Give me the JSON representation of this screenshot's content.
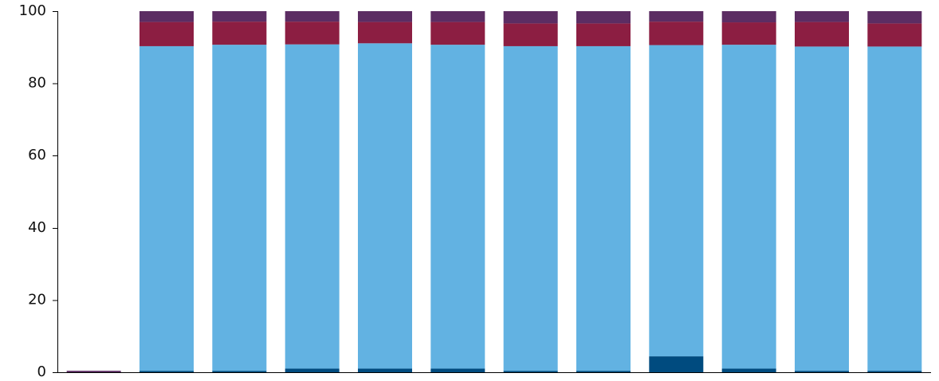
{
  "chart_data": {
    "type": "bar",
    "stacked": true,
    "categories": [
      "",
      "",
      "",
      "",
      "",
      "",
      "",
      "",
      "",
      "",
      "",
      ""
    ],
    "ylim": [
      0,
      100
    ],
    "yticks": [
      "0",
      "20",
      "40",
      "60",
      "80",
      "100"
    ],
    "title": "",
    "xlabel": "",
    "ylabel": "",
    "grid": false,
    "legend": "none",
    "series": [
      {
        "color": "#004B7F",
        "values": [
          0.0,
          0.4,
          0.4,
          1.0,
          1.0,
          1.0,
          0.4,
          0.4,
          4.4,
          1.0,
          0.4,
          0.4
        ]
      },
      {
        "color": "#62B2E2",
        "values": [
          0.0,
          89.9,
          90.3,
          89.8,
          90.1,
          89.7,
          89.9,
          89.9,
          86.2,
          89.7,
          89.8,
          89.8
        ]
      },
      {
        "color": "#8C1E42",
        "values": [
          0.0,
          6.7,
          6.4,
          6.3,
          5.9,
          6.3,
          6.3,
          6.3,
          6.5,
          6.2,
          6.8,
          6.4
        ]
      },
      {
        "color": "#5C2D63",
        "values": [
          0.4,
          3.0,
          2.9,
          2.9,
          3.0,
          3.0,
          3.4,
          3.4,
          2.9,
          3.1,
          3.0,
          3.4
        ]
      }
    ]
  }
}
